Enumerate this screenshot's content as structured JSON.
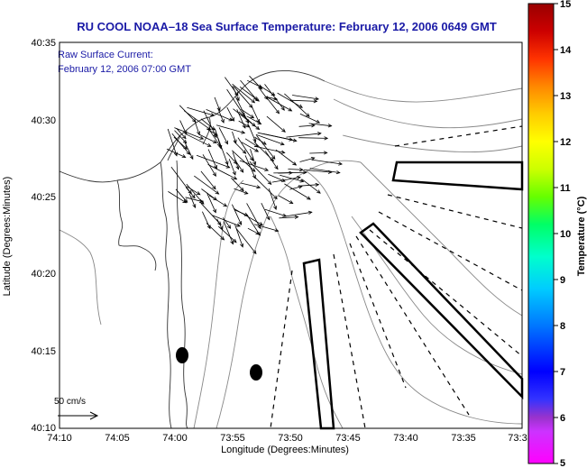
{
  "title": "RU COOL  NOAA–18  Sea Surface Temperature:  February 12, 2006 0649 GMT",
  "current_label_line1": "Raw Surface Current:",
  "current_label_line2": "February 12, 2006 07:00 GMT",
  "scale_label": "50 cm/s",
  "xlabel": "Longitude (Degrees:Minutes)",
  "ylabel": "Latitude (Degrees:Minutes)",
  "colorbar_label": "Temperature (°C)",
  "x_ticks": [
    "74:10",
    "74:05",
    "74:00",
    "73:55",
    "73:50",
    "73:45",
    "73:40",
    "73:35",
    "73:3"
  ],
  "y_ticks": [
    "40:35",
    "40:30",
    "40:25",
    "40:20",
    "40:15",
    "40:10"
  ],
  "colorbar_ticks": [
    "15",
    "14",
    "13",
    "12",
    "11",
    "10",
    "9",
    "8",
    "7",
    "6",
    "5"
  ],
  "colors": {
    "title": "#1a1aa6",
    "colorbar": [
      "#ff00ff",
      "#9933cc",
      "#0000ff",
      "#0077ff",
      "#00ccff",
      "#00ffcc",
      "#00ff66",
      "#66ff00",
      "#ccff00",
      "#ffff00",
      "#ffcc00",
      "#ff8800",
      "#ff3300",
      "#cc0000",
      "#990000"
    ]
  }
}
